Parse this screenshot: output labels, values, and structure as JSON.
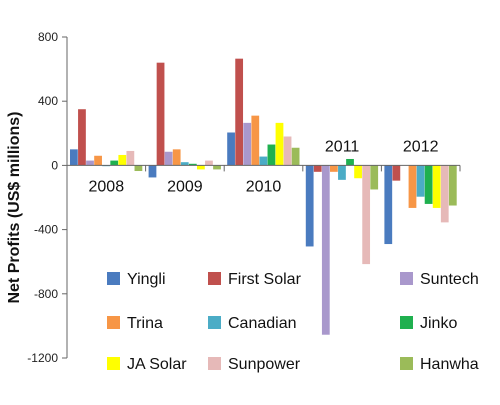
{
  "chart_data": {
    "type": "bar",
    "title": "",
    "xlabel": "",
    "ylabel": "Net Profits (US$ millions)",
    "ylim": [
      -1200,
      800
    ],
    "yticks": [
      800,
      400,
      0,
      -400,
      -800,
      -1200
    ],
    "grid": false,
    "legend_position": "bottom-right inside plot",
    "categories": [
      "2008",
      "2009",
      "2010",
      "2011",
      "2012"
    ],
    "series": [
      {
        "name": "Yingli",
        "color": "#4a7bbf",
        "values": [
          100,
          -75,
          205,
          -505,
          -490
        ]
      },
      {
        "name": "First Solar",
        "color": "#c0504d",
        "values": [
          350,
          640,
          665,
          -40,
          -95
        ]
      },
      {
        "name": "Suntech",
        "color": "#a998cc",
        "values": [
          30,
          85,
          265,
          -1055,
          0
        ]
      },
      {
        "name": "Trina",
        "color": "#f79646",
        "values": [
          60,
          100,
          310,
          -40,
          -265
        ]
      },
      {
        "name": "Canadian",
        "color": "#4bacc6",
        "values": [
          -5,
          20,
          55,
          -90,
          -195
        ]
      },
      {
        "name": "Jinko",
        "color": "#1fb04f",
        "values": [
          30,
          10,
          130,
          40,
          -240
        ]
      },
      {
        "name": "JA Solar",
        "color": "#ffff00",
        "values": [
          65,
          -25,
          265,
          -80,
          -265
        ]
      },
      {
        "name": "Sunpower",
        "color": "#e6b9b8",
        "values": [
          90,
          30,
          180,
          -615,
          -355
        ]
      },
      {
        "name": "Hanwha",
        "color": "#9bbb59",
        "values": [
          -35,
          -25,
          110,
          -150,
          -250
        ]
      }
    ]
  }
}
